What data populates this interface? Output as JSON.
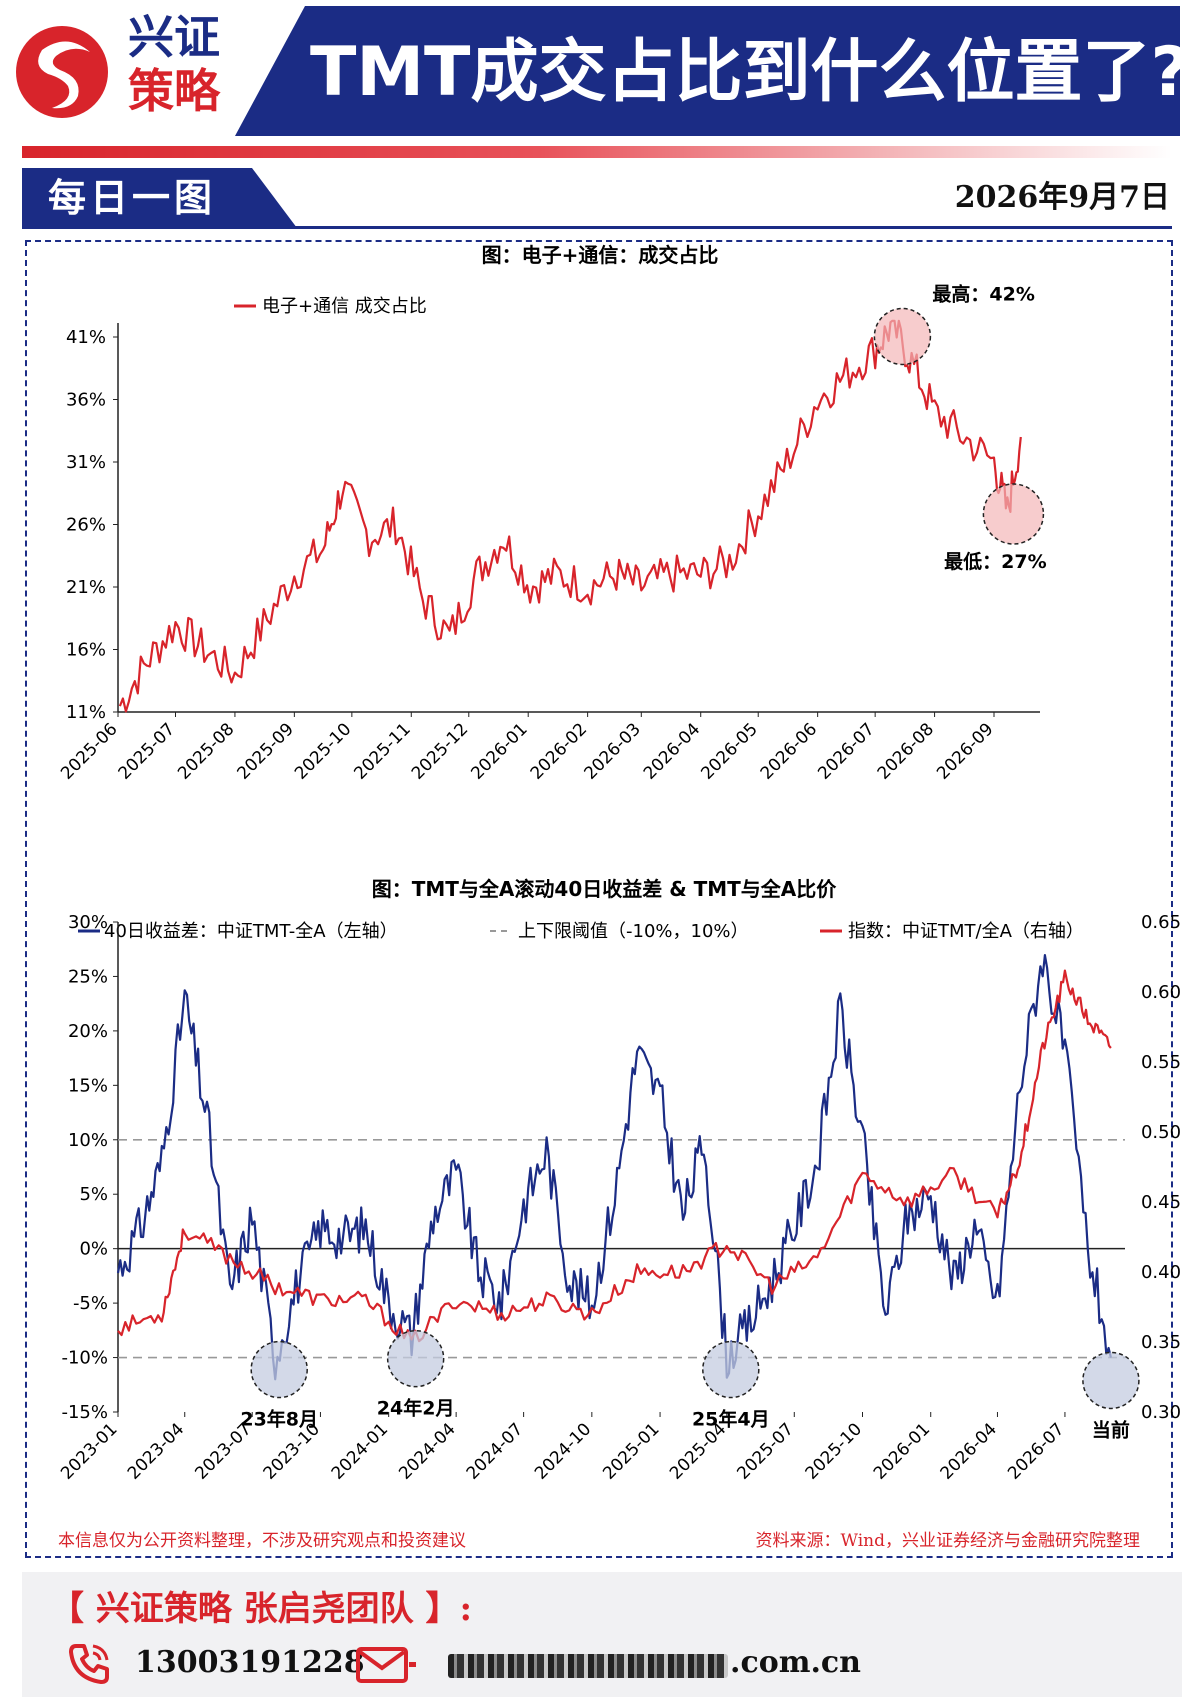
{
  "header": {
    "logo_line1": "兴证",
    "logo_line2": "策略",
    "title": "TMT成交占比到什么位置了?"
  },
  "section": {
    "label": "每日一图",
    "date": "2026年9月7日"
  },
  "colors": {
    "navy": "#1b2c85",
    "red": "#d8242b",
    "dashed_line": "#999999",
    "highlight_red": "#f4b6b8",
    "highlight_blue": "#c4cce0"
  },
  "chart_data": [
    {
      "type": "line",
      "title": "图：电子+通信：成交占比",
      "legend_position": "top-left",
      "series": [
        {
          "name": "电子+通信 成交占比",
          "color": "#d8242b",
          "x": [
            "2025-06-02",
            "2025-06-16",
            "2025-07-01",
            "2025-07-16",
            "2025-08-01",
            "2025-08-16",
            "2025-09-01",
            "2025-09-16",
            "2025-09-26",
            "2025-10-10",
            "2025-10-24",
            "2025-11-07",
            "2025-11-21",
            "2025-12-05",
            "2025-12-19",
            "2026-01-02",
            "2026-01-16",
            "2026-02-01",
            "2026-02-16",
            "2026-03-01",
            "2026-03-16",
            "2026-04-01",
            "2026-04-16",
            "2026-05-01",
            "2026-05-16",
            "2026-06-01",
            "2026-06-16",
            "2026-07-01",
            "2026-07-10",
            "2026-07-20",
            "2026-08-01",
            "2026-08-16",
            "2026-09-01",
            "2026-09-08",
            "2026-09-15"
          ],
          "values": [
            11.5,
            15,
            18,
            16,
            14,
            18,
            22,
            24,
            29,
            25,
            26,
            20,
            17,
            22,
            25,
            21,
            22,
            21,
            22,
            21,
            22,
            22,
            23,
            27,
            31,
            36,
            38,
            40,
            42,
            39,
            35,
            33,
            31,
            27,
            33
          ]
        }
      ],
      "yticks": [
        "11%",
        "16%",
        "21%",
        "26%",
        "31%",
        "36%",
        "41%"
      ],
      "ylim": [
        11,
        42
      ],
      "xticks": [
        "2025-06",
        "2025-07",
        "2025-08",
        "2025-09",
        "2025-10",
        "2025-11",
        "2025-12",
        "2026-01",
        "2026-02",
        "2026-03",
        "2026-04",
        "2026-05",
        "2026-06",
        "2026-07",
        "2026-08",
        "2026-09"
      ],
      "annotations": [
        {
          "label": "最高：42%",
          "x": "2026-07-10",
          "y": 42
        },
        {
          "label": "最低：27%",
          "x": "2026-09-08",
          "y": 27
        }
      ]
    },
    {
      "type": "line",
      "title": "图：TMT与全A滚动40日收益差 & TMT与全A比价",
      "legend_position": "top",
      "series": [
        {
          "name": "40日收益差：中证TMT-全A（左轴）",
          "color": "#1b2c85",
          "axis": "left",
          "x": [
            "2023-01",
            "2023-02",
            "2023-03",
            "2023-04",
            "2023-05",
            "2023-06",
            "2023-07",
            "2023-08",
            "2023-09",
            "2023-10",
            "2023-11",
            "2023-12",
            "2024-01",
            "2024-02",
            "2024-03",
            "2024-04",
            "2024-05",
            "2024-06",
            "2024-07",
            "2024-08",
            "2024-09",
            "2024-10",
            "2024-11",
            "2024-12",
            "2025-01",
            "2025-02",
            "2025-03",
            "2025-04",
            "2025-05",
            "2025-06",
            "2025-07",
            "2025-08",
            "2025-09",
            "2025-10",
            "2025-11",
            "2025-12",
            "2026-01",
            "2026-02",
            "2026-03",
            "2026-04",
            "2026-05",
            "2026-06",
            "2026-07",
            "2026-08",
            "2026-09"
          ],
          "values": [
            -2,
            2,
            8,
            23,
            12,
            -4,
            3,
            -10,
            -3,
            2,
            1,
            2,
            -5,
            -8,
            3,
            7,
            -2,
            -5,
            4,
            9,
            -3,
            -5,
            5,
            18,
            14,
            3,
            10,
            -10,
            -7,
            -3,
            2,
            8,
            22,
            10,
            -6,
            3,
            5,
            -3,
            2,
            -5,
            15,
            27,
            18,
            0,
            -10
          ]
        },
        {
          "name": "上下限阈值（-10%，10%）",
          "color": "#999999",
          "axis": "left",
          "values": [
            -10,
            10
          ]
        },
        {
          "name": "指数：中证TMT/全A（右轴）",
          "color": "#d8242b",
          "axis": "right",
          "x": [
            "2023-01",
            "2023-03",
            "2023-04",
            "2023-06",
            "2023-08",
            "2023-10",
            "2023-12",
            "2024-02",
            "2024-04",
            "2024-06",
            "2024-08",
            "2024-10",
            "2024-12",
            "2025-02",
            "2025-04",
            "2025-06",
            "2025-08",
            "2025-10",
            "2025-12",
            "2026-02",
            "2026-04",
            "2026-05",
            "2026-06",
            "2026-07",
            "2026-08",
            "2026-09"
          ],
          "values": [
            0.36,
            0.37,
            0.43,
            0.41,
            0.39,
            0.38,
            0.38,
            0.35,
            0.38,
            0.37,
            0.38,
            0.37,
            0.4,
            0.4,
            0.42,
            0.39,
            0.41,
            0.47,
            0.45,
            0.47,
            0.44,
            0.48,
            0.56,
            0.61,
            0.58,
            0.56
          ]
        }
      ],
      "yticks_left": [
        "-15%",
        "-10%",
        "-5%",
        "0%",
        "5%",
        "10%",
        "15%",
        "20%",
        "25%",
        "30%"
      ],
      "ylim_left": [
        -15,
        30
      ],
      "yticks_right": [
        "0.30",
        "0.35",
        "0.40",
        "0.45",
        "0.50",
        "0.55",
        "0.60",
        "0.65"
      ],
      "ylim_right": [
        0.3,
        0.65
      ],
      "xticks": [
        "2023-01",
        "2023-04",
        "2023-07",
        "2023-10",
        "2024-01",
        "2024-04",
        "2024-07",
        "2024-10",
        "2025-01",
        "2025-04",
        "2025-07",
        "2025-10",
        "2026-01",
        "2026-04",
        "2026-07"
      ],
      "annotations": [
        {
          "label": "23年8月",
          "x": "2023-08",
          "y": -10
        },
        {
          "label": "24年2月",
          "x": "2024-02",
          "y": -9
        },
        {
          "label": "25年4月",
          "x": "2025-04",
          "y": -10
        },
        {
          "label": "当前",
          "x": "2026-09",
          "y": -11
        }
      ]
    }
  ],
  "notes": {
    "disclaimer": "本信息仅为公开资料整理，不涉及研究观点和投资建议",
    "source": "资料来源：Wind，兴业证券经济与金融研究院整理"
  },
  "footer": {
    "team": "【 兴证策略 张启尧团队 】:",
    "phone": "13003191228",
    "email_domain": ".com.cn",
    "phone_icon": "phone-icon",
    "mail_icon": "mail-icon"
  }
}
